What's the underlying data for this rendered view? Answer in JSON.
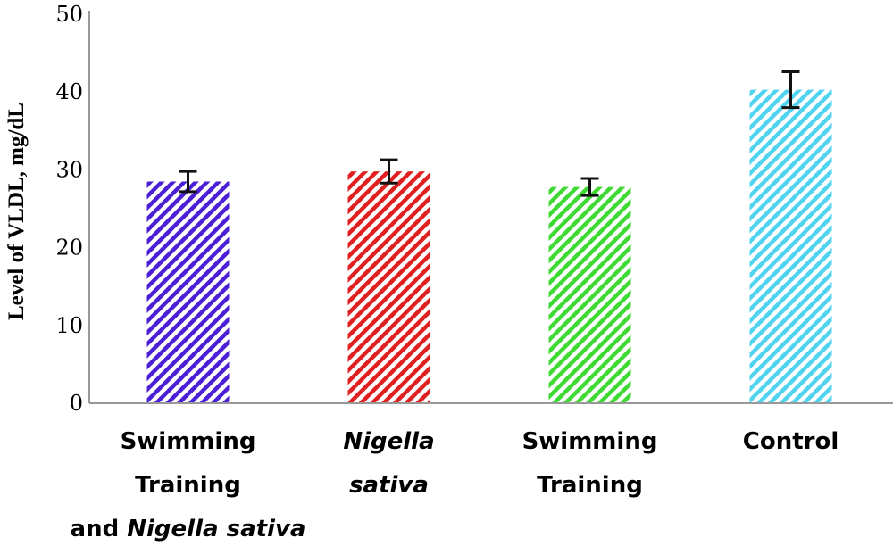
{
  "chart_data": {
    "type": "bar",
    "title": "",
    "xlabel": "",
    "ylabel": "Level of VLDL, mg/dL",
    "ylim": [
      0,
      50
    ],
    "yticks": [
      "0",
      "10",
      "20",
      "30",
      "40",
      "50"
    ],
    "grid": false,
    "categories": [
      "Swimming Training and Nigella sativa",
      "Nigella sativa",
      "Swimming Training",
      "Control"
    ],
    "category_label_lines": [
      [
        [
          {
            "t": "Swimming"
          }
        ],
        [
          {
            "t": "Training"
          }
        ],
        [
          {
            "t": "and "
          },
          {
            "t": "Nigella sativa",
            "italic": true
          }
        ]
      ],
      [
        [
          {
            "t": "Nigella",
            "italic": true
          }
        ],
        [
          {
            "t": "sativa",
            "italic": true
          }
        ]
      ],
      [
        [
          {
            "t": "Swimming"
          }
        ],
        [
          {
            "t": "Training"
          }
        ]
      ],
      [
        [
          {
            "t": "Control"
          }
        ]
      ]
    ],
    "values": [
      28.5,
      29.8,
      27.8,
      40.3
    ],
    "errors": [
      1.3,
      1.5,
      1.1,
      2.3
    ],
    "colors": [
      "#4b1fd6",
      "#e02020",
      "#3fd933",
      "#4fd3ef"
    ],
    "pattern": "diagonal-stripes"
  }
}
